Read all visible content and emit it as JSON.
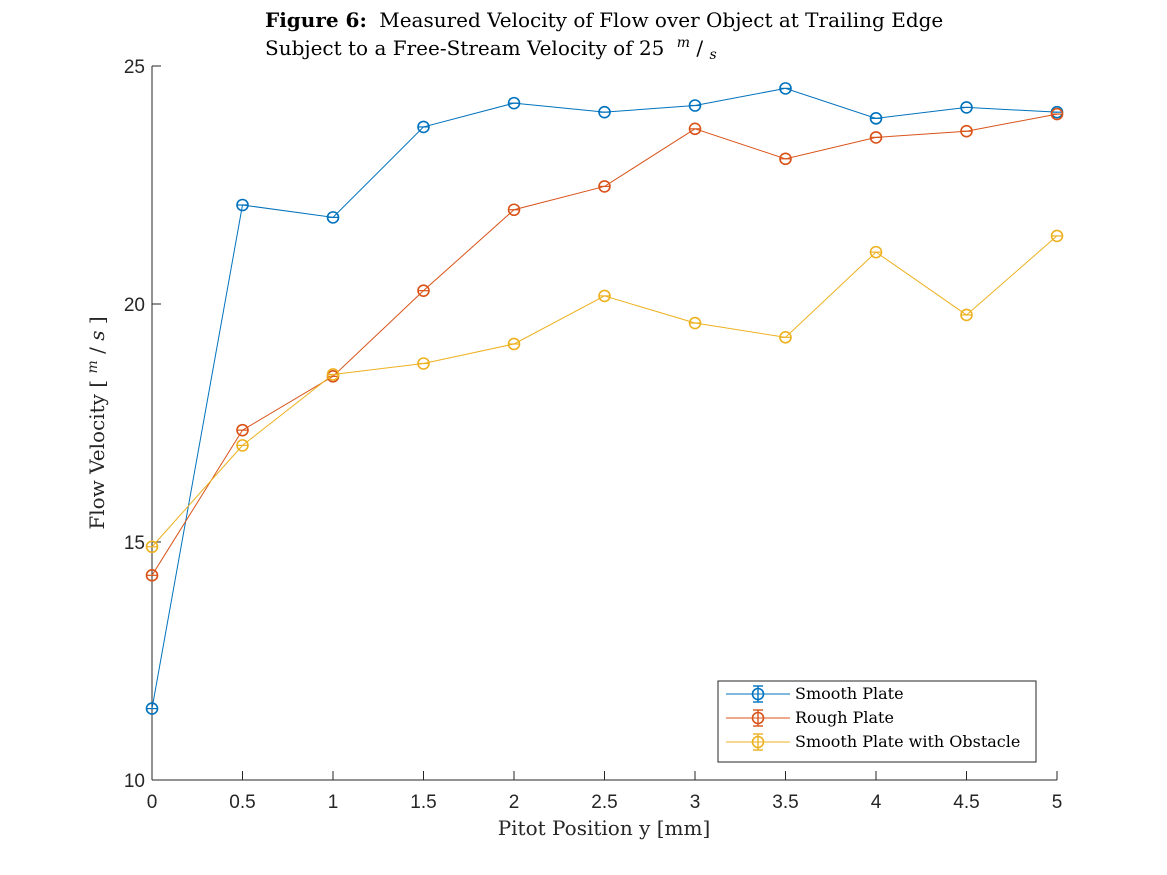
{
  "chart_data": {
    "type": "line",
    "title_bold": "Figure 6:",
    "title_line1": "Measured Velocity of Flow over Object at Trailing Edge",
    "title_line2_prefix": "Subject to a Free-Stream Velocity of 25",
    "title_unit_num": "m",
    "title_unit_slash": "/",
    "title_unit_den": "s",
    "xlabel": "Pitot Position y [mm]",
    "ylabel_prefix": "Flow Velocity [",
    "ylabel_unit_num": "m",
    "ylabel_unit_slash": "/",
    "ylabel_unit_den": "s",
    "ylabel_suffix": "]",
    "xlim": [
      0,
      5
    ],
    "ylim": [
      10,
      25
    ],
    "xticks": [
      0,
      0.5,
      1,
      1.5,
      2,
      2.5,
      3,
      3.5,
      4,
      4.5,
      5
    ],
    "xtick_labels": [
      "0",
      "0.5",
      "1",
      "1.5",
      "2",
      "2.5",
      "3",
      "3.5",
      "4",
      "4.5",
      "5"
    ],
    "yticks": [
      10,
      15,
      20,
      25
    ],
    "ytick_labels": [
      "10",
      "15",
      "20",
      "25"
    ],
    "grid": false,
    "legend_position": "bottom-right",
    "x": [
      0,
      0.5,
      1,
      1.5,
      2,
      2.5,
      3,
      3.5,
      4,
      4.5,
      5
    ],
    "series": [
      {
        "name": "Smooth Plate",
        "color": "#0072BD",
        "values": [
          11.5,
          22.08,
          21.82,
          23.72,
          24.22,
          24.03,
          24.17,
          24.53,
          23.9,
          24.13,
          24.03
        ]
      },
      {
        "name": "Rough Plate",
        "color": "#D95319",
        "values": [
          14.3,
          17.35,
          18.48,
          20.28,
          21.98,
          22.47,
          23.68,
          23.05,
          23.5,
          23.63,
          23.99
        ]
      },
      {
        "name": "Smooth Plate with Obstacle",
        "color": "#EDB120",
        "values": [
          14.9,
          17.03,
          18.52,
          18.75,
          19.16,
          20.17,
          19.6,
          19.3,
          21.09,
          19.77,
          21.43
        ]
      }
    ]
  }
}
